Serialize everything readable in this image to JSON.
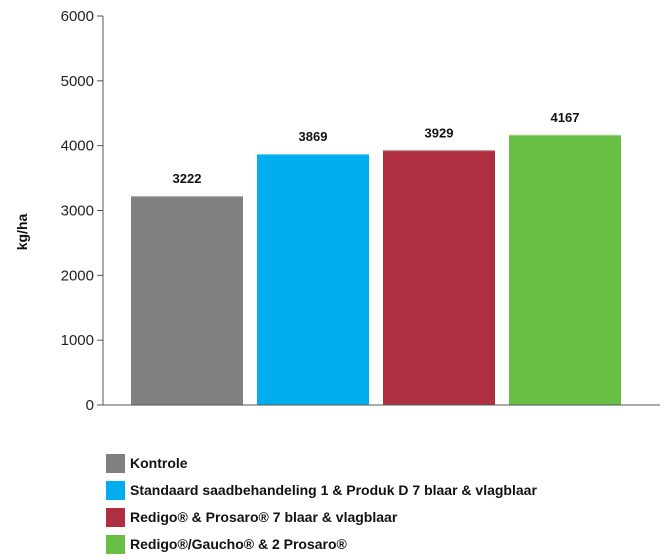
{
  "chart_data": {
    "type": "bar",
    "ylabel": "kg/ha",
    "ylim": [
      0,
      6000
    ],
    "yticks": [
      0,
      1000,
      2000,
      3000,
      4000,
      5000,
      6000
    ],
    "yticks_text": [
      "0",
      "1000",
      "2000",
      "3000",
      "4000",
      "5000",
      "6000"
    ],
    "grid": false,
    "legend_position": "bottom",
    "bars": [
      {
        "label": "Kontrole",
        "value": 3222,
        "value_text": "3222",
        "color": "#808083"
      },
      {
        "label": "Standaard saadbehandeling 1 & Produk D 7 blaar & vlagblaar",
        "value": 3869,
        "value_text": "3869",
        "color": "#00adef"
      },
      {
        "label": "Redigo® & Prosaro® 7 blaar & vlagblaar",
        "value": 3929,
        "value_text": "3929",
        "color": "#ad2f40"
      },
      {
        "label": "Redigo®/Gaucho® & 2 Prosaro®",
        "value": 4167,
        "value_text": "4167",
        "color": "#69bf44"
      }
    ]
  }
}
